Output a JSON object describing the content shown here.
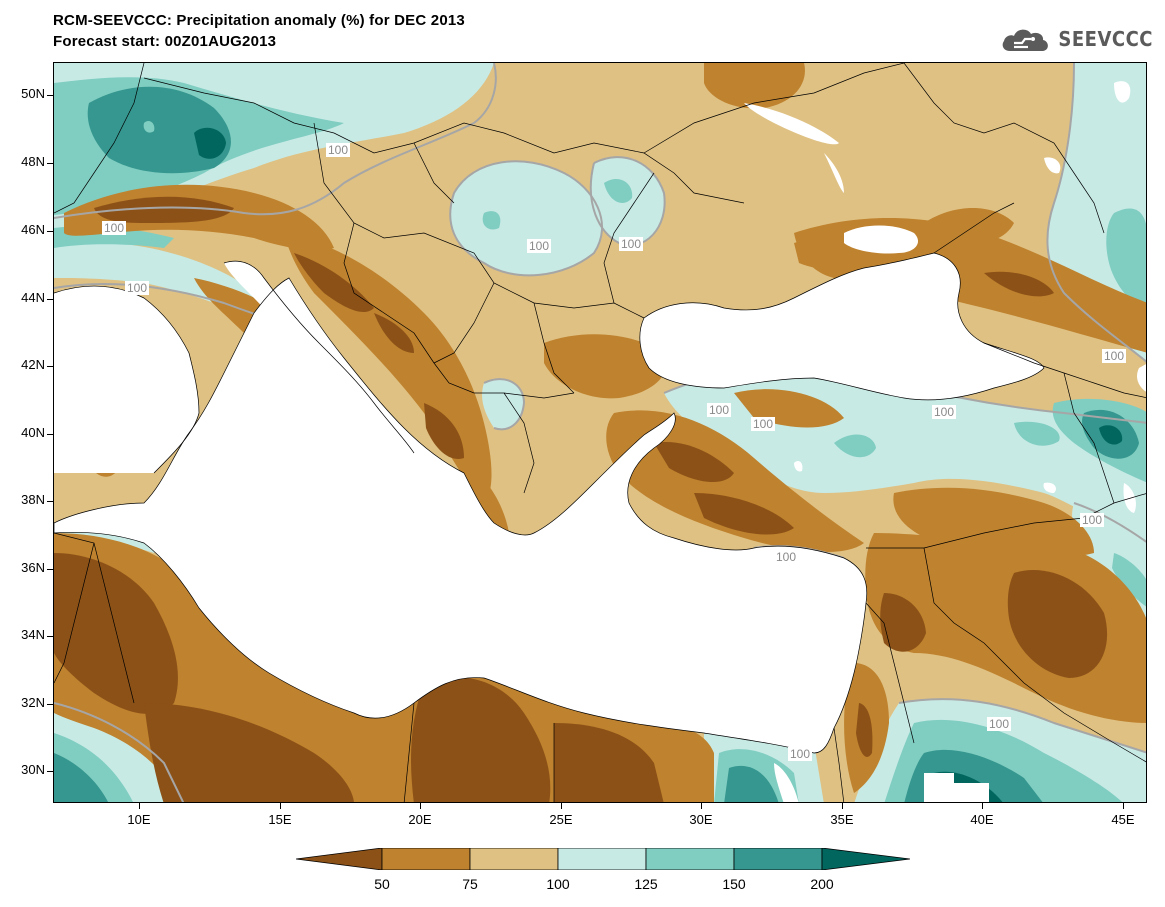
{
  "header": {
    "title": "RCM-SEEVCCC: Precipitation anomaly (%) for DEC 2013",
    "subtitle": "Forecast start: 00Z01AUG2013",
    "logo_text": "SEEVCCC"
  },
  "axes": {
    "lat_labels": [
      "50N",
      "48N",
      "46N",
      "44N",
      "42N",
      "40N",
      "38N",
      "36N",
      "34N",
      "32N",
      "30N"
    ],
    "lon_labels": [
      "10E",
      "15E",
      "20E",
      "25E",
      "30E",
      "35E",
      "40E",
      "45E"
    ]
  },
  "contour_labels": [
    "100",
    "100",
    "100",
    "100",
    "100",
    "100",
    "100",
    "100",
    "100",
    "100",
    "100",
    "100",
    "100",
    "100"
  ],
  "legend": {
    "labels": [
      "50",
      "75",
      "100",
      "125",
      "150",
      "200"
    ],
    "colors": [
      "#8c5117",
      "#bf822e",
      "#dfc183",
      "#c7eae5",
      "#80cdc1",
      "#35978f",
      "#01665e"
    ]
  },
  "colors": {
    "sea": "#ffffff",
    "dark_brown": "#8c5117",
    "brown": "#bf822e",
    "tan": "#dfc183",
    "light_teal": "#c7eae5",
    "teal": "#80cdc1",
    "dark_teal": "#35978f",
    "darkest_teal": "#01665e",
    "contour_100": "#a6a6a6"
  }
}
